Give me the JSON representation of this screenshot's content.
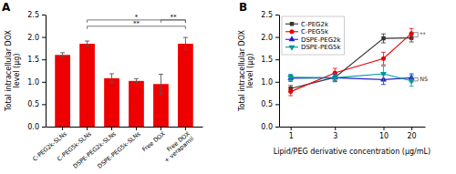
{
  "chart_data": [
    {
      "type": "bar",
      "title": "A",
      "categories": [
        "C-PEG2k-SLNs",
        "C-PEG5k-SLNs",
        "DSPE-PEG2k-SLNs",
        "DSPE-PEG5k-SLNs",
        "Free DOX",
        "Free DOX\n+ verapamil"
      ],
      "values": [
        1.6,
        1.85,
        1.08,
        1.02,
        0.95,
        1.85
      ],
      "errors": [
        0.05,
        0.06,
        0.1,
        0.05,
        0.22,
        0.14
      ],
      "color": "#ee0000",
      "ylabel": "Total intracellular DOX\nlevel (μg)",
      "ylim": [
        0.0,
        2.5
      ],
      "yticks": [
        {
          "value": 0.0,
          "label": "0.0"
        },
        0.5,
        {
          "value": 1.0,
          "label": "1.0"
        },
        1.5,
        {
          "value": 2.0,
          "label": "2.0"
        },
        2.5
      ],
      "grid": false,
      "annotations": [
        {
          "text": "*",
          "from": "C-PEG5k-SLNs",
          "to": "Free DOX\n+ verapamil",
          "y": 2.38
        },
        {
          "text": "**",
          "from": "C-PEG5k-SLNs",
          "to": "Free DOX\n+ verapamil",
          "y": 2.24
        },
        {
          "text": "**",
          "from": "Free DOX",
          "to": "Free DOX\n+ verapamil",
          "y": 2.38
        }
      ]
    },
    {
      "type": "line",
      "title": "B",
      "x": [
        1,
        3,
        10,
        20
      ],
      "series": [
        {
          "name": "C-PEG2k",
          "color": "#333333",
          "marker": "square",
          "line_style": "solid",
          "values": [
            0.85,
            1.1,
            1.97,
            1.98
          ],
          "errors": [
            0.07,
            0.08,
            0.1,
            0.09
          ]
        },
        {
          "name": "C-PEG5k",
          "color": "#ee0000",
          "marker": "circle",
          "line_style": "solid",
          "values": [
            0.78,
            1.2,
            1.52,
            2.08
          ],
          "errors": [
            0.09,
            0.1,
            0.14,
            0.11
          ]
        },
        {
          "name": "DSPE-PEG2k",
          "color": "#2222cc",
          "marker": "triangle-up",
          "line_style": "solid",
          "values": [
            1.08,
            1.09,
            1.05,
            1.09
          ],
          "errors": [
            0.07,
            0.08,
            0.11,
            0.09
          ]
        },
        {
          "name": "DSPE-PEG5k",
          "color": "#009999",
          "marker": "triangle-down",
          "line_style": "solid",
          "values": [
            1.1,
            1.09,
            1.18,
            1.02
          ],
          "errors": [
            0.07,
            0.09,
            0.17,
            0.12
          ]
        }
      ],
      "xlabel": "Lipid/PEG derivative concentration (μg/mL)",
      "ylabel": "Total intracellular DOX\nlevel (μg)",
      "xlim": [
        0.75,
        28
      ],
      "xticks": [
        1,
        3,
        10,
        20
      ],
      "ylim": [
        0.0,
        2.5
      ],
      "yticks": [
        {
          "value": 0.0,
          "label": "0.0"
        },
        0.5,
        {
          "value": 1.0,
          "label": "1.0"
        },
        1.5,
        {
          "value": 2.0,
          "label": "2.0"
        },
        2.5
      ],
      "log": "x",
      "grid": false,
      "legend": "upper left",
      "annotations": [
        {
          "text": "**",
          "x": [
            20.5,
            23.5
          ],
          "y": [
            2.0,
            2.1
          ]
        },
        {
          "text": "NS",
          "x": [
            20.5,
            23.5
          ],
          "y": [
            1.02,
            1.09
          ]
        }
      ]
    }
  ]
}
